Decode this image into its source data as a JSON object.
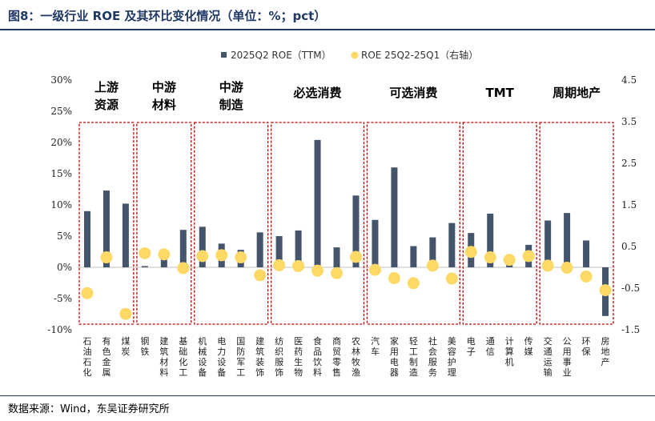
{
  "title": "图8：一级行业 ROE 及其环比变化情况（单位：%；pct）",
  "source": "数据来源：Wind，东吴证券研究所",
  "colors": {
    "bar": "#44546a",
    "dot": "#ffd966",
    "box": "#c00000",
    "title": "#1f3864"
  },
  "chart_data": {
    "type": "bar",
    "legend_position": "top",
    "grid": false,
    "ylim": [
      -10,
      30
    ],
    "y2lim": [
      -1.5,
      4.5
    ],
    "yticks": [
      "30%",
      "25%",
      "20%",
      "15%",
      "10%",
      "5%",
      "0%",
      "-5%",
      "-10%"
    ],
    "y2ticks": [
      "4.5",
      "3.5",
      "2.5",
      "1.5",
      "0.5",
      "-0.5",
      "-1.5"
    ],
    "categories": [
      "石油石化",
      "有色金属",
      "煤炭",
      "钢铁",
      "建筑材料",
      "基础化工",
      "机械设备",
      "电力设备",
      "国防军工",
      "建筑装饰",
      "纺织服饰",
      "医药生物",
      "食品饮料",
      "商贸零售",
      "农林牧渔",
      "汽车",
      "家用电器",
      "轻工制造",
      "社会服务",
      "美容护理",
      "电子",
      "通信",
      "计算机",
      "传媒",
      "交通运输",
      "公用事业",
      "环保",
      "房地产"
    ],
    "groups": [
      {
        "label_lines": [
          "上游",
          "资源"
        ],
        "count": 3
      },
      {
        "label_lines": [
          "中游",
          "材料"
        ],
        "count": 3
      },
      {
        "label_lines": [
          "中游",
          "制造"
        ],
        "count": 4
      },
      {
        "label_lines": [
          "必选消费"
        ],
        "count": 5
      },
      {
        "label_lines": [
          "可选消费"
        ],
        "count": 5
      },
      {
        "label_lines": [
          "TMT"
        ],
        "count": 4
      },
      {
        "label_lines": [
          "周期地产"
        ],
        "count": 4
      }
    ],
    "series": [
      {
        "name": "2025Q2 ROE（TTM）",
        "type": "bar",
        "axis": "left",
        "values": [
          9.0,
          12.3,
          10.2,
          0.2,
          1.7,
          6.0,
          6.5,
          3.8,
          2.8,
          5.6,
          5.0,
          5.9,
          20.4,
          3.2,
          11.5,
          7.6,
          16.0,
          3.4,
          4.8,
          7.1,
          5.5,
          8.6,
          0.8,
          3.6,
          7.5,
          8.7,
          4.3,
          -7.8
        ]
      },
      {
        "name": "ROE 25Q2-25Q1（右轴）",
        "type": "scatter",
        "axis": "right",
        "values": [
          -0.62,
          0.24,
          -1.12,
          0.34,
          0.31,
          -0.02,
          0.27,
          0.29,
          0.24,
          -0.19,
          0.05,
          0.03,
          -0.08,
          -0.14,
          0.25,
          -0.06,
          -0.26,
          -0.38,
          0.04,
          -0.27,
          0.37,
          0.24,
          0.18,
          0.27,
          0.04,
          -0.01,
          -0.22,
          -0.55
        ]
      }
    ]
  }
}
